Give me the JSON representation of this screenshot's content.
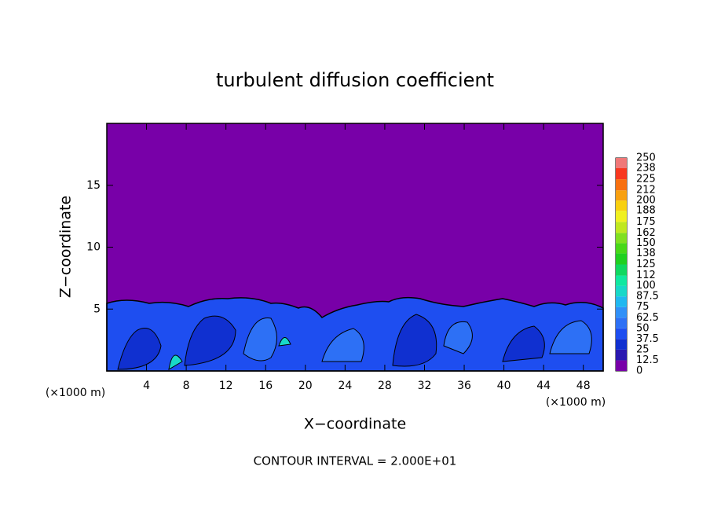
{
  "chart_data": {
    "type": "contour",
    "title": "turbulent diffusion coefficient",
    "xlabel": "X−coordinate",
    "ylabel": "Z−coordinate",
    "x_unit_labels": [
      "(×1000 m)",
      "(×1000 m)"
    ],
    "footnote": "CONTOUR INTERVAL = 2.000E+01",
    "xlim": [
      0,
      50
    ],
    "xticks": [
      4,
      8,
      12,
      16,
      20,
      24,
      28,
      32,
      36,
      40,
      44,
      48
    ],
    "ylim": [
      0,
      20
    ],
    "yticks": [
      5,
      10,
      15
    ],
    "colorbar": {
      "levels": [
        0,
        12.5,
        25,
        37.5,
        50,
        62.5,
        75,
        87.5,
        100,
        112,
        125,
        138,
        150,
        162,
        175,
        188,
        200,
        212,
        225,
        238,
        250
      ],
      "colors": [
        "#7800a8",
        "#2a18b0",
        "#1030d0",
        "#1e4ef0",
        "#2d70f5",
        "#3090f8",
        "#20b8f0",
        "#18d8c8",
        "#10e8a0",
        "#10d860",
        "#20d020",
        "#48d818",
        "#80e020",
        "#c0e820",
        "#f0f020",
        "#f8d010",
        "#f8a010",
        "#f87010",
        "#f83820",
        "#f07878"
      ]
    }
  }
}
